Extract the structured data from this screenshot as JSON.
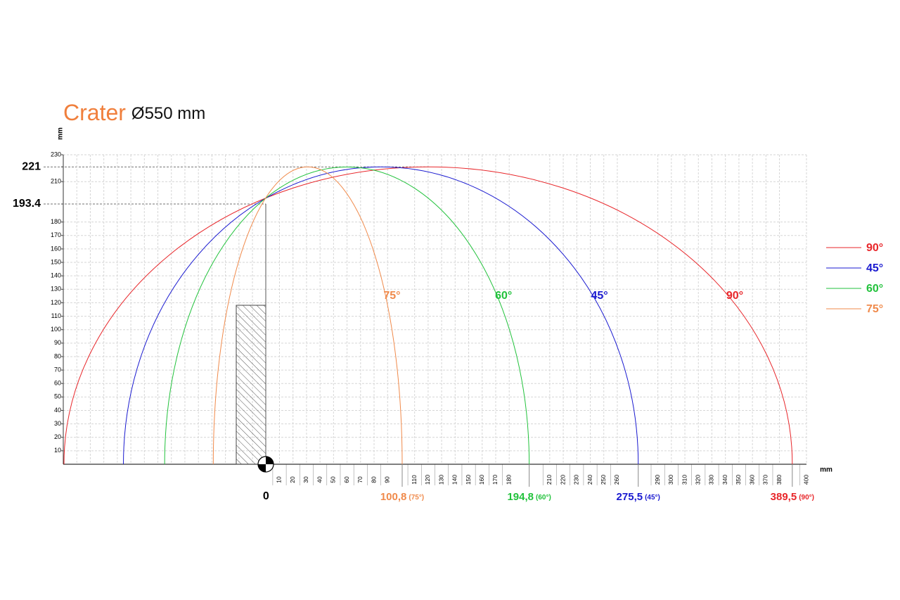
{
  "chart_data": {
    "type": "arc",
    "title": "Crater",
    "subtitle": "Ø550 mm",
    "x_label": "mm",
    "y_label": "mm",
    "xlim": [
      -150,
      400
    ],
    "ylim": [
      0,
      230
    ],
    "xticks": [
      0,
      10,
      20,
      30,
      40,
      50,
      60,
      70,
      80,
      90,
      110,
      120,
      130,
      140,
      150,
      160,
      170,
      180,
      210,
      220,
      230,
      240,
      250,
      260,
      290,
      300,
      310,
      320,
      330,
      340,
      350,
      360,
      370,
      380,
      400
    ],
    "yticks": [
      10,
      20,
      30,
      40,
      50,
      60,
      70,
      80,
      90,
      100,
      110,
      120,
      130,
      140,
      150,
      160,
      170,
      180,
      193.4,
      210,
      221,
      230
    ],
    "grid": true,
    "legend": "right",
    "series": [
      {
        "name": "90°",
        "color": "#e8262a",
        "start": -149.5,
        "end": 389.5,
        "end_label": "389,5",
        "end_note": "(90°)",
        "peak": 221
      },
      {
        "name": "45°",
        "color": "#1a1ad0",
        "start": -105.5,
        "end": 275.5,
        "end_label": "275,5",
        "end_note": "(45°)",
        "peak": 221
      },
      {
        "name": "60°",
        "color": "#22c23c",
        "start": -75,
        "end": 194.8,
        "end_label": "194,8",
        "end_note": "(60°)",
        "peak": 221
      },
      {
        "name": "75°",
        "color": "#f08a4b",
        "start": -39,
        "end": 100.8,
        "end_label": "100,8",
        "end_note": "(75°)",
        "peak": 221
      }
    ]
  }
}
